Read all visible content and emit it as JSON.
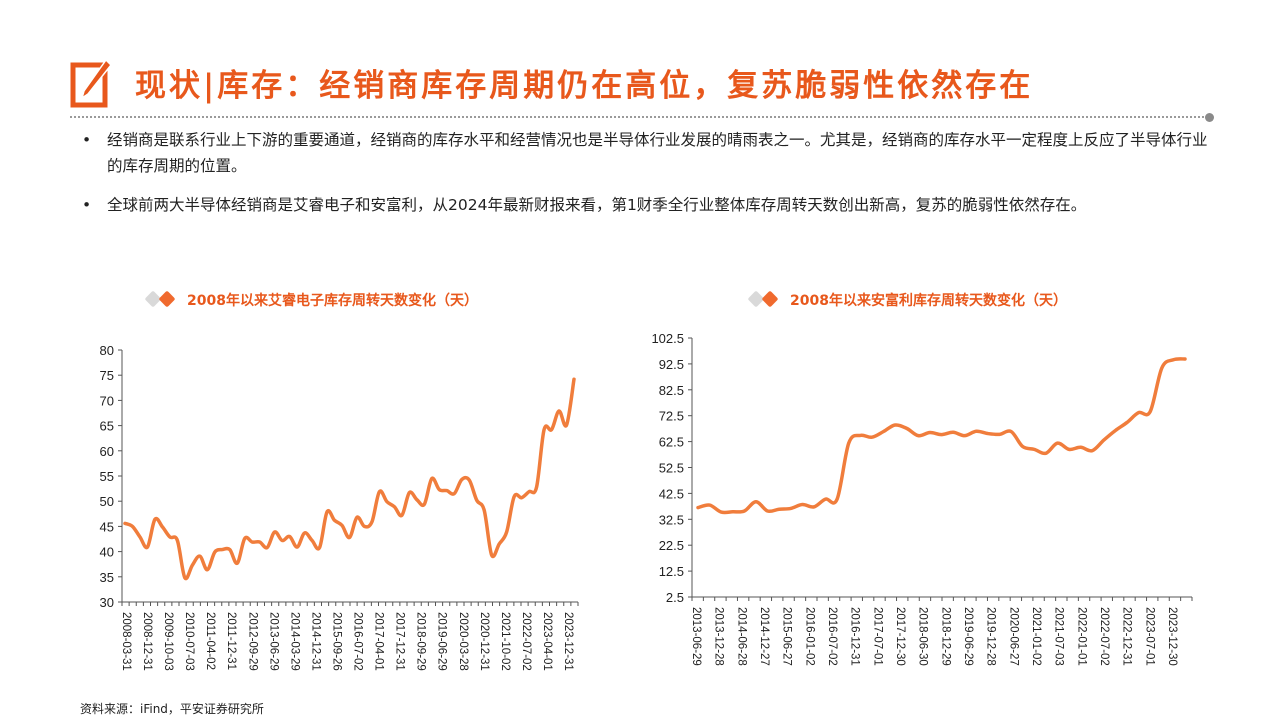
{
  "header": {
    "title": "现状|库存：经销商库存周期仍在高位，复苏脆弱性依然存在",
    "icon": "pencil-note-icon"
  },
  "bullets": [
    "经销商是联系行业上下游的重要通道，经销商的库存水平和经营情况也是半导体行业发展的晴雨表之一。尤其是，经销商的库存水平一定程度上反应了半导体行业的库存周期的位置。",
    "全球前两大半导体经销商是艾睿电子和安富利，从2024年最新财报来看，第1财季全行业整体库存周转天数创出新高，复苏的脆弱性依然存在。"
  ],
  "colors": {
    "accent": "#E8581C",
    "line": "#F07D3C",
    "diamond_gray": "#D9D9D9"
  },
  "source": "资料来源：iFind，平安证券研究所",
  "chart_data": [
    {
      "type": "line",
      "title": "2008年以来艾睿电子库存周转天数变化（天）",
      "xlabel": "",
      "ylabel": "",
      "ylim": [
        30,
        80
      ],
      "yticks": [
        "30",
        "35",
        "40",
        "45",
        "50",
        "55",
        "60",
        "65",
        "70",
        "75",
        "80"
      ],
      "xticks": [
        "2008-03-31",
        "2008-12-31",
        "2009-10-03",
        "2010-07-03",
        "2011-04-02",
        "2011-12-31",
        "2012-09-29",
        "2013-06-29",
        "2014-03-29",
        "2014-12-31",
        "2015-09-26",
        "2016-07-02",
        "2017-04-01",
        "2017-12-31",
        "2018-09-29",
        "2019-06-29",
        "2020-03-28",
        "2020-12-31",
        "2021-10-02",
        "2022-07-02",
        "2023-04-01",
        "2023-12-31"
      ],
      "grid": false,
      "values": [
        45.6,
        45.0,
        42.9,
        40.9,
        46.4,
        44.9,
        42.9,
        42.2,
        34.8,
        37.3,
        39.1,
        36.4,
        39.9,
        40.4,
        40.4,
        37.7,
        42.6,
        41.9,
        41.9,
        40.8,
        43.9,
        42.2,
        43.0,
        40.9,
        43.7,
        42.2,
        40.8,
        47.9,
        46.2,
        45.2,
        42.8,
        46.8,
        45.0,
        45.9,
        51.9,
        49.9,
        48.9,
        47.2,
        51.7,
        50.3,
        49.4,
        54.5,
        52.3,
        52.1,
        51.5,
        54.3,
        54.2,
        50.2,
        48.2,
        39.3,
        41.5,
        43.9,
        50.9,
        50.7,
        51.9,
        52.8,
        64.2,
        64.2,
        67.9,
        65.1,
        74.2
      ]
    },
    {
      "type": "line",
      "title": "2008年以来安富利库存周转天数变化（天）",
      "xlabel": "",
      "ylabel": "",
      "ylim": [
        2.5,
        102.5
      ],
      "yticks": [
        "2.5",
        "12.5",
        "22.5",
        "32.5",
        "42.5",
        "52.5",
        "62.5",
        "72.5",
        "82.5",
        "92.5",
        "102.5"
      ],
      "xticks": [
        "2013-06-29",
        "2013-12-28",
        "2014-06-28",
        "2014-12-27",
        "2015-06-27",
        "2016-01-02",
        "2016-07-02",
        "2016-12-31",
        "2017-07-01",
        "2017-12-30",
        "2018-06-30",
        "2018-12-29",
        "2019-06-29",
        "2019-12-28",
        "2020-06-27",
        "2021-01-02",
        "2021-07-03",
        "2022-01-01",
        "2022-07-02",
        "2022-12-31",
        "2023-07-01",
        "2023-12-30"
      ],
      "grid": false,
      "values": [
        37.0,
        38.0,
        35.3,
        35.4,
        35.7,
        39.3,
        35.7,
        36.4,
        36.7,
        38.2,
        37.3,
        40.3,
        40.3,
        61.9,
        64.9,
        64.2,
        66.4,
        68.9,
        67.6,
        64.8,
        66.0,
        65.2,
        66.1,
        64.8,
        66.5,
        65.6,
        65.3,
        66.4,
        60.6,
        59.5,
        58.0,
        61.9,
        59.5,
        60.3,
        59.0,
        63.1,
        66.8,
        69.9,
        73.7,
        74.1,
        90.9,
        94.1,
        94.4
      ]
    }
  ]
}
